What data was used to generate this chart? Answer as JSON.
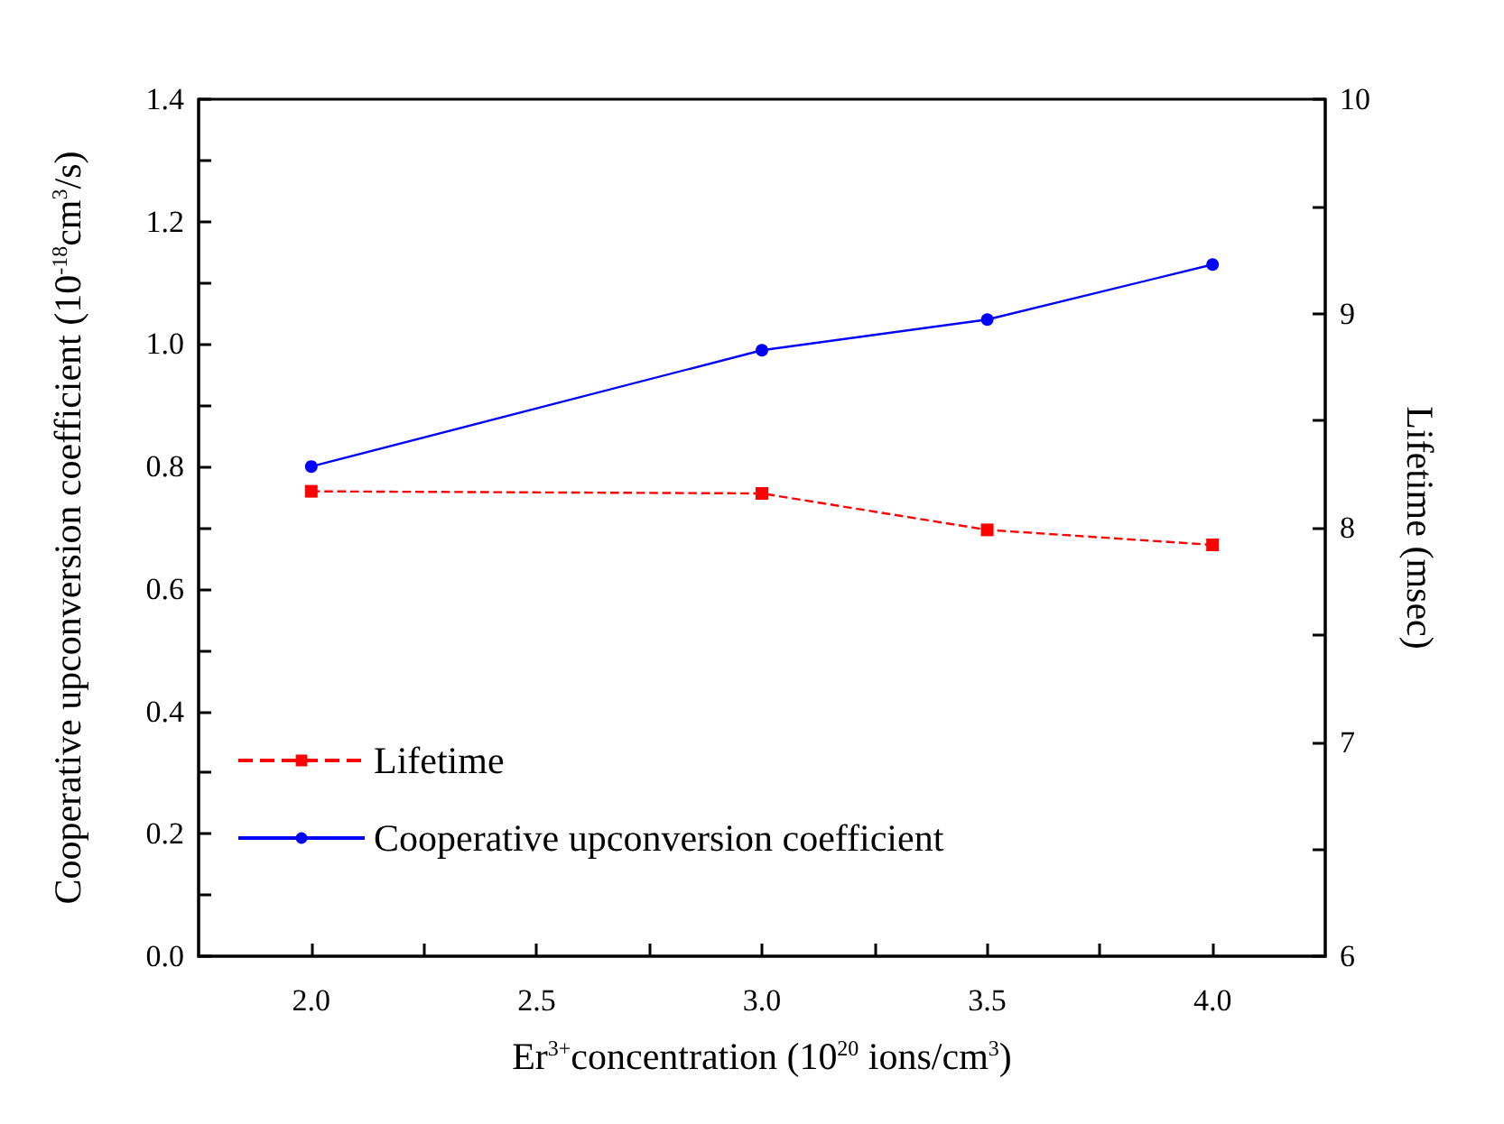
{
  "chart_data": {
    "type": "line",
    "xlabel": "Er$^{3+}$concentration (10$^{20}$ ions/cm$^{3}$)",
    "ylabel": "Cooperative upconversion coefficient (10$^{-18}$cm$^{3}$/s)",
    "y2label": "Lifetime (msec)",
    "x": [
      2.0,
      3.0,
      3.5,
      4.0
    ],
    "series": [
      {
        "name": "Lifetime",
        "color": "#ff0000",
        "values": [
          8.17,
          8.16,
          7.99,
          7.92
        ],
        "axis": "y2",
        "marker": "square",
        "line_style": "dashed"
      },
      {
        "name": "Cooperative upconversion coefficient",
        "color": "#0000ff",
        "values": [
          0.8,
          0.99,
          1.04,
          1.13
        ],
        "marker": "circle",
        "line_style": "solid"
      }
    ],
    "xlim": [
      1.75,
      4.25
    ],
    "xticks": [
      {
        "value": 2,
        "label": "2.0"
      },
      {
        "value": 2.25,
        "label": null
      },
      {
        "value": 2.5,
        "label": "2.5"
      },
      {
        "value": 2.75,
        "label": null
      },
      {
        "value": 3,
        "label": "3.0"
      },
      {
        "value": 3.25,
        "label": null
      },
      {
        "value": 3.5,
        "label": "3.5"
      },
      {
        "value": 3.75,
        "label": null
      },
      {
        "value": 4,
        "label": "4.0"
      }
    ],
    "ylim": [
      0,
      1.4
    ],
    "yticks": [
      {
        "value": 0,
        "label": "0.0"
      },
      {
        "value": 0.1,
        "label": null
      },
      {
        "value": 0.2,
        "label": "0.2"
      },
      {
        "value": 0.3,
        "label": null
      },
      {
        "value": 0.4,
        "label": "0.4"
      },
      {
        "value": 0.5,
        "label": null
      },
      {
        "value": 0.6,
        "label": "0.6"
      },
      {
        "value": 0.7,
        "label": null
      },
      {
        "value": 0.8,
        "label": "0.8"
      },
      {
        "value": 0.9,
        "label": null
      },
      {
        "value": 1,
        "label": "1.0"
      },
      {
        "value": 1.1,
        "label": null
      },
      {
        "value": 1.2,
        "label": "1.2"
      },
      {
        "value": 1.3,
        "label": null
      },
      {
        "value": 1.4,
        "label": "1.4"
      }
    ],
    "y2lim": [
      6,
      10
    ],
    "y2ticks": [
      6,
      {
        "value": 6.5,
        "label": null
      },
      7,
      {
        "value": 7.5,
        "label": null
      },
      8,
      {
        "value": 8.5,
        "label": null
      },
      9,
      {
        "value": 9.5,
        "label": null
      },
      10
    ],
    "grid": false,
    "legend": "bottom left"
  }
}
